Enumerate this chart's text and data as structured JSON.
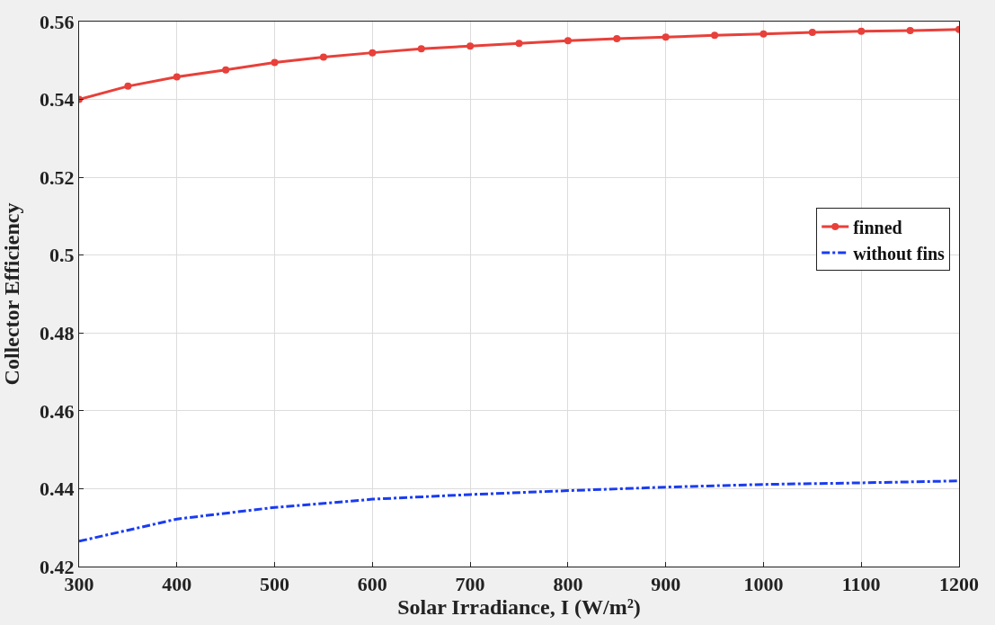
{
  "chart_data": {
    "type": "line",
    "xlabel": "Solar Irradiance, I (W/m²)",
    "ylabel": "Collector Efficiency",
    "xlim": [
      300,
      1200
    ],
    "xticks": [
      300,
      400,
      500,
      600,
      700,
      800,
      900,
      1000,
      1100,
      1200
    ],
    "ylim": [
      0.42,
      0.56
    ],
    "yticks": [
      0.42,
      0.44,
      0.46,
      0.48,
      {
        "value": 0.5,
        "label": "0.5"
      },
      0.52,
      0.54,
      0.56
    ],
    "grid": true,
    "legend": "right",
    "series": [
      {
        "name": "finned",
        "color": "#e8403a",
        "marker": "circle",
        "line_style": "solid",
        "x": [
          300,
          350,
          400,
          450,
          500,
          550,
          600,
          650,
          700,
          750,
          800,
          850,
          900,
          950,
          1000,
          1050,
          1100,
          1150,
          1200
        ],
        "values": [
          0.54,
          0.5434,
          0.5458,
          0.5476,
          0.5495,
          0.5509,
          0.552,
          0.553,
          0.5537,
          0.5544,
          0.5551,
          0.5556,
          0.556,
          0.5565,
          0.5568,
          0.5572,
          0.5575,
          0.5577,
          0.558
        ]
      },
      {
        "name": "without fins",
        "color": "#1a3cf0",
        "marker": "none",
        "line_style": "dashdot",
        "x": [
          300,
          400,
          500,
          600,
          700,
          800,
          900,
          1000,
          1100,
          1200
        ],
        "values": [
          0.4265,
          0.4322,
          0.4352,
          0.4373,
          0.4385,
          0.4395,
          0.4404,
          0.4411,
          0.4415,
          0.442
        ]
      }
    ]
  }
}
